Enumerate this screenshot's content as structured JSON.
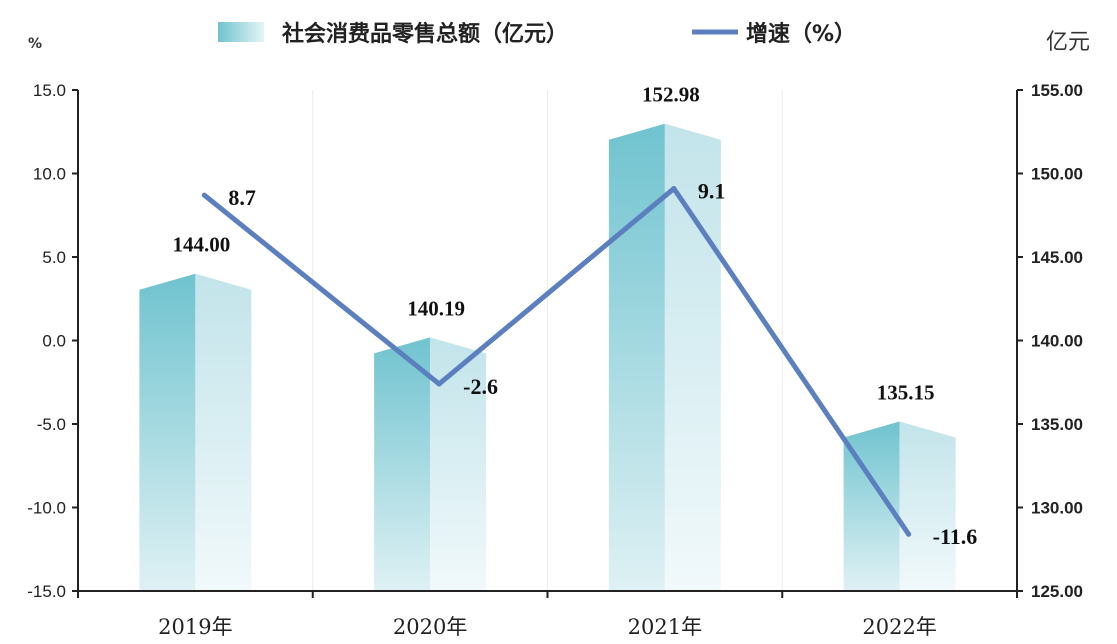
{
  "chart_data": {
    "type": "bar",
    "categories": [
      "2019年",
      "2020年",
      "2021年",
      "2022年"
    ],
    "series": [
      {
        "name": "社会消费品零售总额（亿元）",
        "type": "bar",
        "axis": "right",
        "values": [
          144.0,
          140.19,
          152.98,
          135.15
        ],
        "labels": [
          "144.00",
          "140.19",
          "152.98",
          "135.15"
        ]
      },
      {
        "name": "增速（%）",
        "type": "line",
        "axis": "left",
        "values": [
          8.7,
          -2.6,
          9.1,
          -11.6
        ],
        "labels": [
          "8.7",
          "-2.6",
          "9.1",
          "-11.6"
        ]
      }
    ],
    "y_left": {
      "unit": "%",
      "range": [
        -15,
        15
      ],
      "ticks": [
        "15.0",
        "10.0",
        "5.0",
        "0.0",
        "-5.0",
        "-10.0",
        "-15.0"
      ]
    },
    "y_right": {
      "unit": "亿元",
      "range": [
        125,
        155
      ],
      "ticks": [
        "155.00",
        "150.00",
        "145.00",
        "140.00",
        "135.00",
        "130.00",
        "125.00"
      ]
    },
    "legend_position": "top-center",
    "grid": true,
    "colors": {
      "bar_left_top": "#7ecbd6",
      "bar_left_bottom": "#d9eef2",
      "bar_right_top": "#c6e6ec",
      "bar_right_bottom": "#eef8fa",
      "line": "#5b7fbf"
    }
  }
}
